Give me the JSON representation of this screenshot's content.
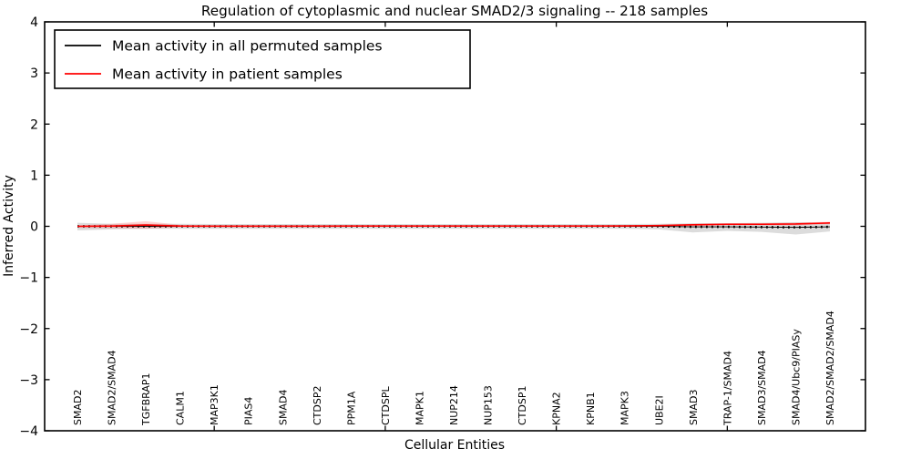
{
  "chart_data": {
    "type": "line",
    "title": "Regulation of cytoplasmic and nuclear SMAD2/3 signaling -- 218 samples",
    "xlabel": "Cellular Entities",
    "ylabel": "Inferred Activity",
    "ylim": [
      -4,
      4
    ],
    "yticks": [
      4,
      3,
      2,
      1,
      0,
      -1,
      -2,
      -3,
      -4
    ],
    "xtick_major_indices": [
      4,
      9,
      14,
      19
    ],
    "grid": false,
    "legend_position": "upper left",
    "categories": [
      "SMAD2",
      "SMAD2/SMAD4",
      "TGFBRAP1",
      "CALM1",
      "MAP3K1",
      "PIAS4",
      "SMAD4",
      "CTDSP2",
      "PPM1A",
      "CTDSPL",
      "MAPK1",
      "NUP214",
      "NUP153",
      "CTDSP1",
      "KPNA2",
      "KPNB1",
      "MAPK3",
      "UBE2I",
      "SMAD3",
      "TRAP-1/SMAD4",
      "SMAD3/SMAD4",
      "SMAD4/Ubc9/PIASy",
      "SMAD2/SMAD2/SMAD4"
    ],
    "series": [
      {
        "name": "Mean activity in all permuted samples",
        "color": "#000000",
        "line_style": "dotted-over-solid",
        "values": [
          0,
          0,
          0,
          0,
          0,
          0,
          0,
          0,
          0,
          0,
          0,
          0,
          0,
          0,
          0,
          0,
          0,
          0,
          -0.01,
          -0.01,
          -0.015,
          -0.02,
          -0.01
        ],
        "band_upper": [
          0.07,
          0.05,
          0.05,
          0.05,
          0.045,
          0.045,
          0.045,
          0.045,
          0.045,
          0.045,
          0.045,
          0.045,
          0.045,
          0.045,
          0.045,
          0.045,
          0.045,
          0.05,
          0.06,
          0.06,
          0.07,
          0.08,
          0.07
        ],
        "band_lower": [
          -0.08,
          -0.06,
          -0.05,
          -0.05,
          -0.05,
          -0.05,
          -0.05,
          -0.05,
          -0.05,
          -0.05,
          -0.05,
          -0.05,
          -0.05,
          -0.05,
          -0.05,
          -0.05,
          -0.05,
          -0.06,
          -0.12,
          -0.09,
          -0.11,
          -0.16,
          -0.1
        ],
        "band_color": "rgba(125,125,125,0.27)"
      },
      {
        "name": "Mean activity in patient samples",
        "color": "#ff0000",
        "line_style": "solid",
        "values": [
          0,
          0.005,
          0.025,
          0.005,
          0.003,
          0.003,
          0.003,
          0.003,
          0.005,
          0.005,
          0.005,
          0.005,
          0.005,
          0.005,
          0.006,
          0.006,
          0.008,
          0.015,
          0.03,
          0.04,
          0.04,
          0.045,
          0.065
        ],
        "band_upper": [
          0.02,
          0.05,
          0.1,
          0.03,
          0.02,
          0.02,
          0.02,
          0.02,
          0.02,
          0.02,
          0.02,
          0.02,
          0.02,
          0.02,
          0.02,
          0.02,
          0.02,
          0.03,
          0.05,
          0.06,
          0.06,
          0.07,
          0.09
        ],
        "band_lower": [
          -0.03,
          -0.04,
          -0.05,
          -0.02,
          -0.015,
          -0.015,
          -0.015,
          -0.015,
          -0.01,
          -0.01,
          -0.01,
          -0.01,
          -0.01,
          -0.01,
          -0.01,
          -0.01,
          -0.01,
          0.0,
          0.01,
          0.02,
          0.02,
          0.02,
          0.04
        ],
        "band_color": "rgba(255,0,0,0.17)"
      }
    ]
  }
}
